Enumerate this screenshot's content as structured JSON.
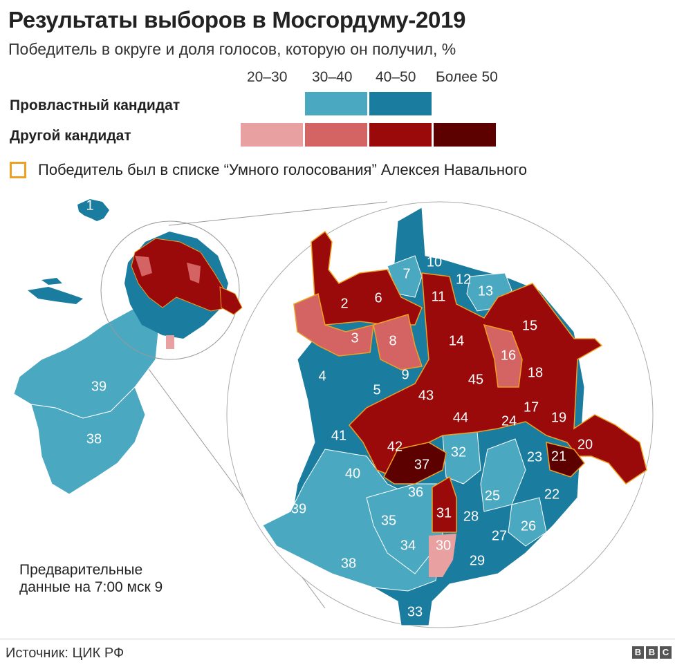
{
  "title": "Результаты выборов в Мосгордуму-2019",
  "subtitle": "Победитель в округе и доля голосов, которую он получил, %",
  "legend": {
    "ranges": [
      "20–30",
      "30–40",
      "40–50",
      "Более 50"
    ],
    "rows": [
      {
        "label": "Провластный кандидат",
        "colors": [
          null,
          "#4aa8c0",
          "#1a7c9e",
          null
        ]
      },
      {
        "label": "Другой кандидат",
        "colors": [
          "#e8a0a0",
          "#d46464",
          "#9b0a0a",
          "#5c0000"
        ]
      }
    ],
    "navalny": "Победитель был в списке “Умного голосования” Алексея Навального",
    "navalny_color": "#f0a020"
  },
  "colors": {
    "pro_30_40": "#4aa8c0",
    "pro_40_50": "#1a7c9e",
    "other_20_30": "#e8a0a0",
    "other_30_40": "#d46464",
    "other_40_50": "#9b0a0a",
    "other_over_50": "#5c0000"
  },
  "districts": [
    {
      "n": "1",
      "bin": "pro_40_50"
    },
    {
      "n": "2",
      "bin": "other_40_50",
      "navalny": true
    },
    {
      "n": "3",
      "bin": "other_30_40",
      "navalny": true
    },
    {
      "n": "4",
      "bin": "pro_40_50"
    },
    {
      "n": "5",
      "bin": "pro_40_50"
    },
    {
      "n": "6",
      "bin": "other_40_50",
      "navalny": true
    },
    {
      "n": "7",
      "bin": "pro_30_40"
    },
    {
      "n": "8",
      "bin": "other_30_40",
      "navalny": true
    },
    {
      "n": "9",
      "bin": "pro_40_50"
    },
    {
      "n": "10",
      "bin": "pro_40_50"
    },
    {
      "n": "11",
      "bin": "other_40_50",
      "navalny": true
    },
    {
      "n": "12",
      "bin": "pro_40_50"
    },
    {
      "n": "13",
      "bin": "pro_30_40"
    },
    {
      "n": "14",
      "bin": "other_40_50",
      "navalny": true
    },
    {
      "n": "15",
      "bin": "other_40_50",
      "navalny": true
    },
    {
      "n": "16",
      "bin": "other_30_40",
      "navalny": true
    },
    {
      "n": "17",
      "bin": "other_40_50",
      "navalny": true
    },
    {
      "n": "18",
      "bin": "other_40_50",
      "navalny": true
    },
    {
      "n": "19",
      "bin": "other_40_50",
      "navalny": true
    },
    {
      "n": "20",
      "bin": "other_40_50",
      "navalny": true
    },
    {
      "n": "21",
      "bin": "other_over_50",
      "navalny": true
    },
    {
      "n": "22",
      "bin": "pro_40_50"
    },
    {
      "n": "23",
      "bin": "pro_40_50"
    },
    {
      "n": "24",
      "bin": "other_40_50",
      "navalny": true
    },
    {
      "n": "25",
      "bin": "pro_30_40"
    },
    {
      "n": "26",
      "bin": "pro_30_40"
    },
    {
      "n": "27",
      "bin": "pro_40_50"
    },
    {
      "n": "28",
      "bin": "pro_40_50"
    },
    {
      "n": "29",
      "bin": "pro_40_50"
    },
    {
      "n": "30",
      "bin": "other_20_30"
    },
    {
      "n": "31",
      "bin": "other_40_50",
      "navalny": true
    },
    {
      "n": "32",
      "bin": "pro_30_40"
    },
    {
      "n": "33",
      "bin": "pro_40_50"
    },
    {
      "n": "34",
      "bin": "pro_30_40"
    },
    {
      "n": "35",
      "bin": "pro_30_40"
    },
    {
      "n": "36",
      "bin": "pro_30_40"
    },
    {
      "n": "37",
      "bin": "other_over_50",
      "navalny": true
    },
    {
      "n": "38",
      "bin": "pro_30_40"
    },
    {
      "n": "39",
      "bin": "pro_30_40"
    },
    {
      "n": "40",
      "bin": "pro_30_40"
    },
    {
      "n": "41",
      "bin": "pro_40_50"
    },
    {
      "n": "42",
      "bin": "other_40_50",
      "navalny": true
    },
    {
      "n": "43",
      "bin": "other_40_50",
      "navalny": true
    },
    {
      "n": "44",
      "bin": "other_40_50",
      "navalny": true
    },
    {
      "n": "45",
      "bin": "other_40_50",
      "navalny": true
    }
  ],
  "overview_labels": [
    "1",
    "39",
    "38"
  ],
  "note": "Предварительные данные на 7:00 мск 9",
  "source": "Источник: ЦИК РФ",
  "bbc": [
    "B",
    "B",
    "C"
  ]
}
